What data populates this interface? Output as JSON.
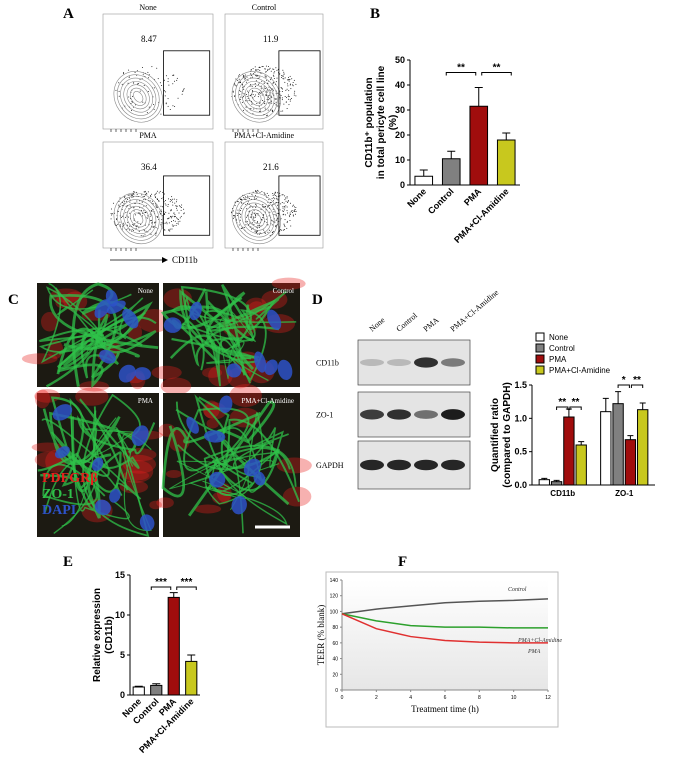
{
  "panel_labels": [
    "A",
    "B",
    "C",
    "D",
    "E",
    "F"
  ],
  "flow": {
    "plots": [
      {
        "label": "None",
        "percent": 8.47
      },
      {
        "label": "Control",
        "percent": 11.9
      },
      {
        "label": "PMA",
        "percent": 36.4
      },
      {
        "label": "PMA+Cl-Amidine",
        "percent": 21.6
      }
    ],
    "axis_label": "CD11b"
  },
  "immuno": {
    "tiles": [
      "None",
      "Control",
      "PMA",
      "PMA+Cl-Amidine"
    ],
    "stains": [
      {
        "name": "PDFGRβ",
        "color": "#e8201c"
      },
      {
        "name": "ZO-1",
        "color": "#2fc24a"
      },
      {
        "name": "DAPI",
        "color": "#2d52c8"
      }
    ]
  },
  "western": {
    "lanes": [
      "None",
      "Control",
      "PMA",
      "PMA+Cl-Amidine"
    ],
    "rows": [
      "CD11b",
      "ZO-1",
      "GAPDH"
    ]
  },
  "chart_data": [
    {
      "type": "bar",
      "y_label": [
        "CD11b⁺ population",
        "in total pericyte cell line",
        "(%)"
      ],
      "categories": [
        "None",
        "Control",
        "PMA",
        "PMA+Cl-Amidine"
      ],
      "values": [
        3.5,
        10.5,
        31.5,
        18
      ],
      "errors": [
        2.5,
        3,
        7.5,
        2.8
      ],
      "colors": [
        "#ffffff",
        "#808080",
        "#a00d0d",
        "#c8c81e"
      ],
      "ylim": [
        0,
        50
      ],
      "yticks": [
        0,
        10,
        20,
        30,
        40,
        50
      ],
      "annotations": [
        "**",
        "**"
      ]
    },
    {
      "type": "grouped-bar",
      "y_label": [
        "Quantified ratio",
        "(compared to GAPDH)"
      ],
      "categories": [
        "CD11b",
        "ZO-1"
      ],
      "series": [
        {
          "name": "None",
          "color": "#ffffff",
          "values": [
            0.08,
            1.1
          ],
          "errors": [
            0.02,
            0.2
          ]
        },
        {
          "name": "Control",
          "color": "#808080",
          "values": [
            0.05,
            1.22
          ],
          "errors": [
            0.02,
            0.18
          ]
        },
        {
          "name": "PMA",
          "color": "#a00d0d",
          "values": [
            1.02,
            0.68
          ],
          "errors": [
            0.12,
            0.06
          ]
        },
        {
          "name": "PMA+Cl-Amidine",
          "color": "#c8c81e",
          "values": [
            0.6,
            1.13
          ],
          "errors": [
            0.05,
            0.1
          ]
        }
      ],
      "ylim": [
        0,
        1.5
      ],
      "yticks": [
        {
          "value": 0,
          "label": "0.0"
        },
        {
          "value": 0.5,
          "label": "0.5"
        },
        {
          "value": 1,
          "label": "1.0"
        },
        {
          "value": 1.5,
          "label": "1.5"
        }
      ],
      "annotations": [
        "**",
        "**",
        "*",
        "**"
      ]
    },
    {
      "type": "bar",
      "y_label": [
        "Relative expression",
        "(CD11b)"
      ],
      "categories": [
        "None",
        "Control",
        "PMA",
        "PMA+Cl-Amidine"
      ],
      "values": [
        1,
        1.2,
        12.2,
        4.2
      ],
      "errors": [
        0.1,
        0.2,
        0.6,
        0.8
      ],
      "colors": [
        "#ffffff",
        "#808080",
        "#a00d0d",
        "#c8c81e"
      ],
      "ylim": [
        0,
        15
      ],
      "yticks": [
        0,
        5,
        10,
        15
      ],
      "annotations": [
        "***",
        "***"
      ]
    },
    {
      "type": "line",
      "x_label": "Treatment time (h)",
      "y_label": [
        "TEER (% blank)"
      ],
      "x": [
        0,
        2,
        4,
        6,
        8,
        10,
        12
      ],
      "series": [
        {
          "name": "Control",
          "color": "#555555",
          "values": [
            97,
            103,
            107,
            111,
            113,
            114,
            116
          ]
        },
        {
          "name": "PMA+Cl-Amidine",
          "color": "#2ca02c",
          "values": [
            97,
            88,
            82,
            80,
            80,
            79,
            79
          ]
        },
        {
          "name": "PMA",
          "color": "#e03030",
          "values": [
            97,
            78,
            68,
            63,
            61,
            60,
            60
          ]
        }
      ],
      "xlim": [
        0,
        12
      ],
      "xticks": [
        0,
        2,
        4,
        6,
        8,
        10,
        12
      ],
      "ylim": [
        0,
        140
      ],
      "yticks": [
        0,
        20,
        40,
        60,
        80,
        100,
        120,
        140
      ]
    }
  ]
}
